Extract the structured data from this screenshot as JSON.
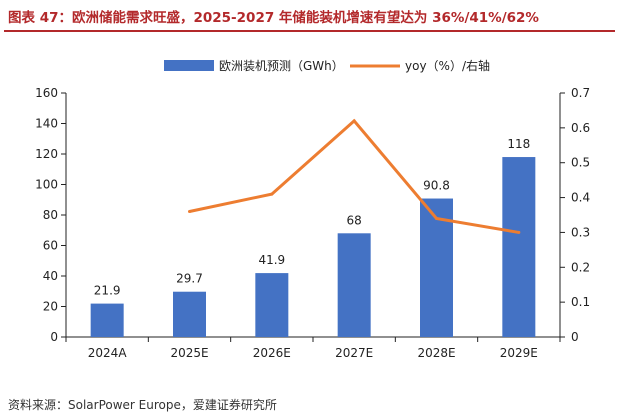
{
  "title": "图表 47：欧洲储能需求旺盛，2025-2027 年储能装机增速有望达为 36%/41%/62%",
  "source": "资料来源：SolarPower Europe，爱建证券研究所",
  "colors": {
    "bar": "#4472c4",
    "line": "#ed7d31",
    "title": "#b3292b"
  },
  "chart_data": {
    "type": "bar",
    "categories": [
      "2024A",
      "2025E",
      "2026E",
      "2027E",
      "2028E",
      "2029E"
    ],
    "series": [
      {
        "name": "欧洲装机预测（GWh）",
        "type": "bar",
        "axis": "left",
        "values": [
          21.9,
          29.7,
          41.9,
          68,
          90.8,
          118
        ],
        "labels": [
          "21.9",
          "29.7",
          "41.9",
          "68",
          "90.8",
          "118"
        ]
      },
      {
        "name": "yoy（%）/右轴",
        "type": "line",
        "axis": "right",
        "values": [
          null,
          0.36,
          0.41,
          0.62,
          0.34,
          0.3
        ]
      }
    ],
    "y_left": {
      "min": 0,
      "max": 160,
      "ticks": [
        "0",
        "20",
        "40",
        "60",
        "80",
        "100",
        "120",
        "140",
        "160"
      ]
    },
    "y_right": {
      "min": 0,
      "max": 0.7,
      "ticks": [
        "0",
        "0.1",
        "0.2",
        "0.3",
        "0.4",
        "0.5",
        "0.6",
        "0.7"
      ]
    },
    "legend_position": "top",
    "grid": false
  }
}
